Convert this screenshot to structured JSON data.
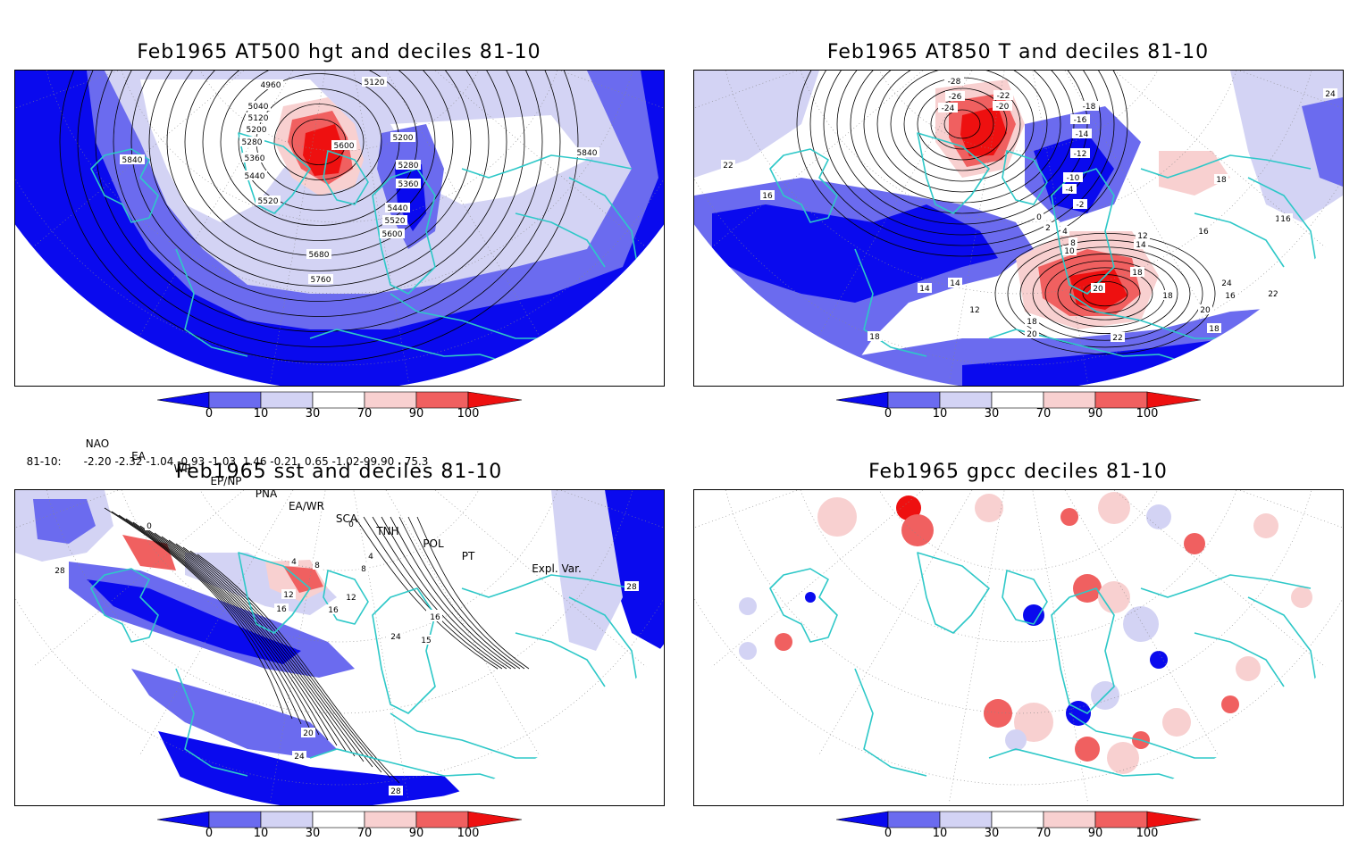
{
  "panels": {
    "top_left": {
      "title": "Feb1965 AT500 hgt and deciles 81-10",
      "contour_labels": [
        "4960",
        "5040",
        "5120",
        "5200",
        "5280",
        "5360",
        "5440",
        "5520",
        "5600",
        "5680",
        "5760",
        "5840",
        "5840",
        "5120",
        "5200",
        "5280",
        "5360",
        "5440",
        "5520",
        "5600",
        "5600"
      ]
    },
    "top_right": {
      "title": "Feb1965 AT850 T and deciles 81-10",
      "contour_labels": [
        "-28",
        "-26",
        "-24",
        "-22",
        "-20",
        "-18",
        "-16",
        "-14",
        "-12",
        "-10",
        "-4",
        "-2",
        "0",
        "2",
        "4",
        "8",
        "10",
        "12",
        "14",
        "16",
        "18",
        "20",
        "22",
        "24",
        "16",
        "16",
        "18",
        "18",
        "14",
        "14",
        "12",
        "18",
        "20",
        "22",
        "20",
        "18",
        "18",
        "16",
        "24",
        "22",
        "16"
      ]
    },
    "bottom_left": {
      "title": "Feb1965 sst and deciles 81-10",
      "contour_labels": [
        "0",
        "4",
        "8",
        "12",
        "16",
        "20",
        "24",
        "28",
        "0",
        "4",
        "8",
        "12",
        "16",
        "20",
        "24",
        "28",
        "16",
        "15",
        "28"
      ]
    },
    "bottom_right": {
      "title": "Feb1965 gpcc deciles 81-10"
    }
  },
  "colorbar": {
    "ticks": [
      "0",
      "10",
      "30",
      "70",
      "90",
      "100"
    ],
    "colors": {
      "dark_blue": "#0a0aee",
      "mid_blue": "#6b6bef",
      "light_blue": "#d3d3f4",
      "white": "#ffffff",
      "light_red": "#f8d0d0",
      "mid_red": "#f06060",
      "dark_red": "#ee1010"
    }
  },
  "indices": {
    "headers": [
      "NAO",
      "EA",
      "WP",
      "EP/NP",
      "PNA",
      "EA/WR",
      "SCA",
      "TNH",
      "POL",
      "PT",
      "Expl. Var."
    ],
    "row_label": "81-10:",
    "values": "-2.20 -2.32 -1.04 -0.93 -1.03  1.46 -0.21  0.65 -1.02-99.90   75.3"
  },
  "colors": {
    "coastline": "#2ec8c8",
    "contour": "#000000",
    "graticule": "#888888"
  }
}
